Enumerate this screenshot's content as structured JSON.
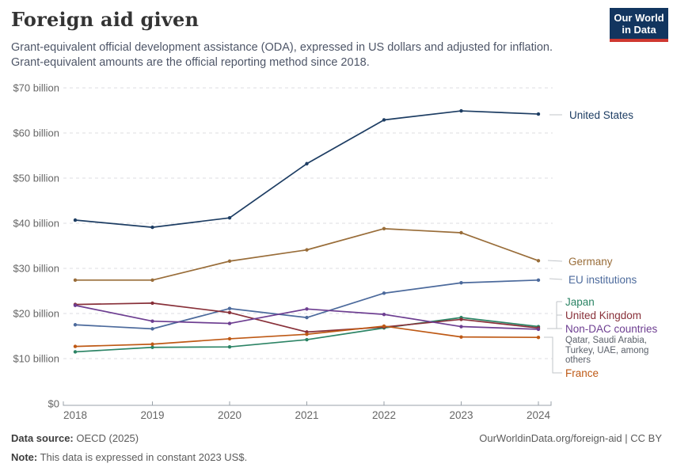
{
  "header": {
    "title": "Foreign aid given",
    "subtitle_line1": "Grant-equivalent official development assistance (ODA), expressed in US dollars and adjusted for inflation.",
    "subtitle_line2": "Grant-equivalent amounts are the official reporting method since 2018.",
    "logo_line1": "Our World",
    "logo_line2": "in Data"
  },
  "chart_data": {
    "type": "line",
    "x": [
      "2018",
      "2019",
      "2020",
      "2021",
      "2022",
      "2023",
      "2024"
    ],
    "y_ticks": [
      0,
      10,
      20,
      30,
      40,
      50,
      60,
      70
    ],
    "y_tick_labels": [
      "$0",
      "$10 billion",
      "$20 billion",
      "$30 billion",
      "$40 billion",
      "$50 billion",
      "$60 billion",
      "$70 billion"
    ],
    "ylim": [
      0,
      70
    ],
    "grid": "horizontal-dashed",
    "legend_position": "right-edge-labels",
    "unit_hint": "US dollars (billions)",
    "series": [
      {
        "name": "United States",
        "color": "#1D3D63",
        "values": [
          40.7,
          39.1,
          41.2,
          53.2,
          62.9,
          64.9,
          64.2
        ]
      },
      {
        "name": "Germany",
        "color": "#996D39",
        "values": [
          27.4,
          27.4,
          31.6,
          34.1,
          38.8,
          37.9,
          31.7
        ]
      },
      {
        "name": "EU institutions",
        "color": "#4C6A9C",
        "values": [
          17.5,
          16.6,
          21.1,
          19.1,
          24.5,
          26.8,
          27.4
        ]
      },
      {
        "name": "Japan",
        "color": "#2C8465",
        "values": [
          11.5,
          12.5,
          12.6,
          14.2,
          16.8,
          19.1,
          17.1
        ]
      },
      {
        "name": "United Kingdom",
        "color": "#883039",
        "values": [
          22.0,
          22.3,
          20.2,
          15.9,
          17.0,
          18.7,
          16.8
        ]
      },
      {
        "name": "Non-DAC countries",
        "color": "#6D3E91",
        "values": [
          21.8,
          18.3,
          17.8,
          21.0,
          19.8,
          17.1,
          16.5
        ],
        "sublabel": "Qatar, Saudi Arabia, Turkey, UAE, among others"
      },
      {
        "name": "France",
        "color": "#BE5915",
        "values": [
          12.7,
          13.2,
          14.4,
          15.4,
          17.2,
          14.8,
          14.7
        ]
      }
    ]
  },
  "footer": {
    "source_label": "Data source:",
    "source_value": " OECD (2025)",
    "note_label": "Note:",
    "note_value": " This data is expressed in constant 2023 US$.",
    "link": "OurWorldinData.org/foreign-aid | CC BY"
  }
}
